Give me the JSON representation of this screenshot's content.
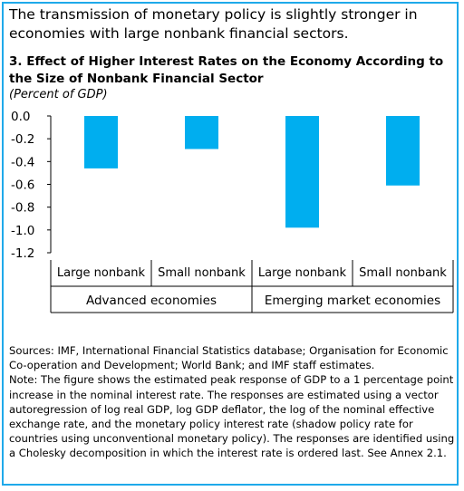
{
  "headline": "The transmission of monetary policy is slightly stronger in economies with large nonbank financial sectors.",
  "chart_data": {
    "type": "bar",
    "title": "3. Effect of Higher Interest Rates on the Economy According to the Size of Nonbank Financial Sector",
    "subtitle": "(Percent of GDP)",
    "categories": [
      "Large nonbank",
      "Small nonbank",
      "Large nonbank",
      "Small nonbank"
    ],
    "groups": [
      {
        "label": "Advanced economies",
        "categories": [
          "Large nonbank",
          "Small nonbank"
        ]
      },
      {
        "label": "Emerging market economies",
        "categories": [
          "Large nonbank",
          "Small nonbank"
        ]
      }
    ],
    "values": [
      -0.46,
      -0.29,
      -0.98,
      -0.61
    ],
    "ylim": [
      -1.2,
      0.0
    ],
    "yticks": [
      "0.0",
      "-0.2",
      "-0.4",
      "-0.6",
      "-0.8",
      "-1.0",
      "-1.2"
    ],
    "bar_color": "#00aeef",
    "grid": false,
    "legend": "none"
  },
  "notes": {
    "sources": "Sources: IMF, International Financial Statistics database; Organisation for Economic Co-operation and Development; World Bank; and IMF staff estimates.",
    "note": "Note: The figure shows the estimated peak response of GDP to a 1 percentage point increase in the nominal interest rate. The responses are estimated using a vector autoregression of log real GDP, log GDP deflator, the log of the nominal effective exchange rate, and the monetary policy interest rate (shadow policy rate for countries using unconventional monetary policy). The responses are identified using a Cholesky decomposition in which the interest rate is ordered last. See Annex 2.1."
  },
  "colors": {
    "frame_border": "#1fa9ea",
    "bar": "#00aeef",
    "axis": "#000000"
  }
}
